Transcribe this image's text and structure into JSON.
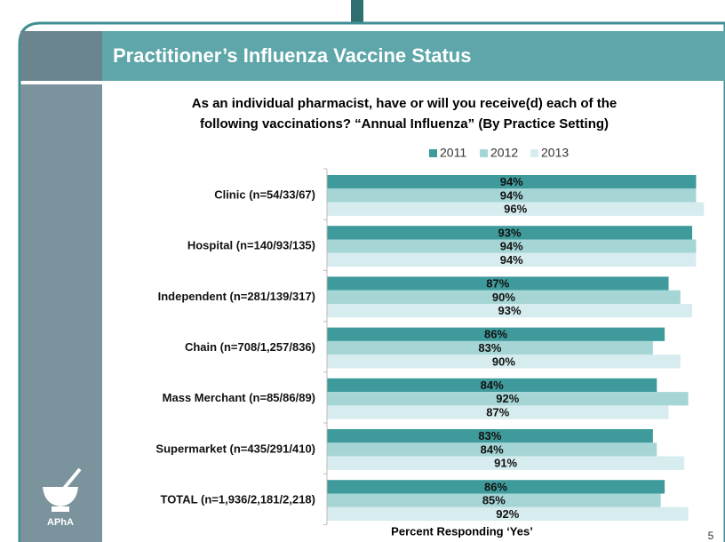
{
  "page_number": "5",
  "logo": "APhA",
  "chart_data": {
    "type": "bar",
    "orientation": "horizontal",
    "title": "Practitioner’s Influenza Vaccine Status",
    "subtitle": [
      "As an individual pharmacist, have or will you receive(d) each of the",
      "following vaccinations?  “Annual Influenza” (By Practice Setting)"
    ],
    "xlabel": "Percent Responding ‘Yes’",
    "categories": [
      "Clinic (n=54/33/67)",
      "Hospital (n=140/93/135)",
      "Independent (n=281/139/317)",
      "Chain (n=708/1,257/836)",
      "Mass Merchant (n=85/86/89)",
      "Supermarket (n=435/291/410)",
      "TOTAL (n=1,936/2,181/2,218)"
    ],
    "series": [
      {
        "name": "2011",
        "color": "#3f9a9b",
        "values": [
          94,
          93,
          87,
          86,
          84,
          83,
          86
        ],
        "value_labels": [
          "94%",
          "93%",
          "87%",
          "86%",
          "84%",
          "83%",
          "86%"
        ]
      },
      {
        "name": "2012",
        "color": "#a6d5d6",
        "values": [
          94,
          94,
          90,
          83,
          92,
          84,
          85
        ],
        "value_labels": [
          "94%",
          "94%",
          "90%",
          "83%",
          "92%",
          "84%",
          "85%"
        ]
      },
      {
        "name": "2013",
        "color": "#d6ecee",
        "values": [
          96,
          94,
          93,
          90,
          87,
          91,
          92
        ],
        "value_labels": [
          "96%",
          "94%",
          "93%",
          "90%",
          "87%",
          "91%",
          "92%"
        ]
      }
    ],
    "xlim": [
      0,
      100
    ],
    "legend": "top"
  }
}
